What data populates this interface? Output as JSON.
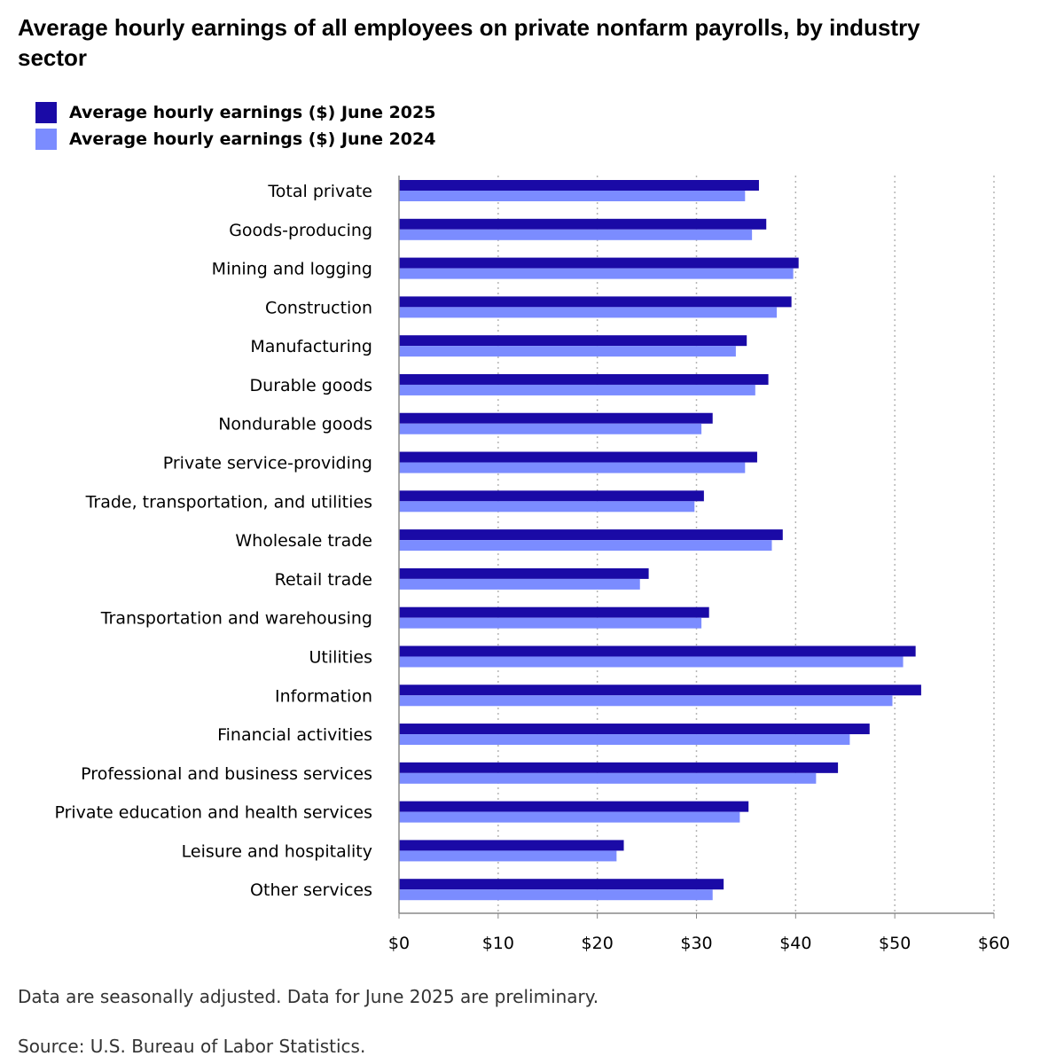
{
  "chart_data": {
    "type": "bar",
    "orientation": "horizontal",
    "title": "Average hourly earnings of all employees on private nonfarm payrolls, by industry sector",
    "categories": [
      "Total private",
      "Goods-producing",
      "Mining and logging",
      "Construction",
      "Manufacturing",
      "Durable goods",
      "Nondurable goods",
      "Private service-providing",
      "Trade, transportation, and utilities",
      "Wholesale trade",
      "Retail trade",
      "Transportation and warehousing",
      "Utilities",
      "Information",
      "Financial activities",
      "Professional and business services",
      "Private education and health services",
      "Leisure and hospitality",
      "Other services"
    ],
    "series": [
      {
        "name": "Average hourly earnings ($) June 2025",
        "color": "#1a0aa6",
        "values": [
          36.3,
          37.04,
          40.3,
          39.58,
          35.07,
          37.25,
          31.63,
          36.12,
          30.75,
          38.7,
          25.18,
          31.27,
          52.1,
          52.66,
          47.46,
          44.27,
          35.25,
          22.67,
          32.74
        ]
      },
      {
        "name": "Average hourly earnings ($) June 2024",
        "color": "#7b8cff",
        "values": [
          34.9,
          35.6,
          39.76,
          38.1,
          33.97,
          35.93,
          30.5,
          34.9,
          29.8,
          37.6,
          24.3,
          30.5,
          50.84,
          49.76,
          45.46,
          42.06,
          34.37,
          21.94,
          31.63
        ]
      }
    ],
    "xlim": [
      0,
      60
    ],
    "xticks": [
      0,
      10,
      20,
      30,
      40,
      50,
      60
    ],
    "xtick_labels": [
      "$0",
      "$10",
      "$20",
      "$30",
      "$40",
      "$50",
      "$60"
    ],
    "grid": true,
    "legend_position": "top-left",
    "note": "Data are seasonally adjusted. Data for June 2025 are preliminary.",
    "source": "Source: U.S. Bureau of Labor Statistics."
  }
}
